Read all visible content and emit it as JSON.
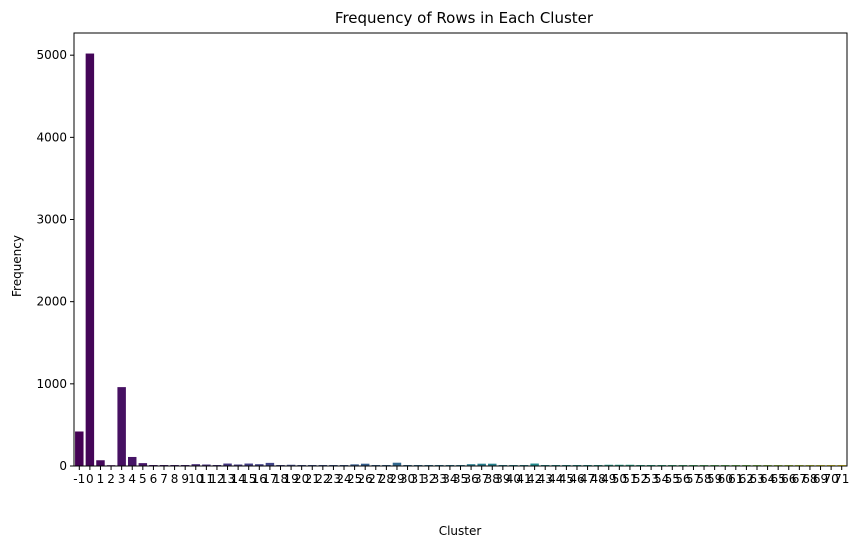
{
  "chart_data": {
    "type": "bar",
    "title": "Frequency of Rows in Each Cluster",
    "xlabel": "Cluster",
    "ylabel": "Frequency",
    "ylim": [
      0,
      5270
    ],
    "yticks": [
      0,
      1000,
      2000,
      3000,
      4000,
      5000
    ],
    "grid": false,
    "colormap": "viridis",
    "categories": [
      "-1",
      "0",
      "1",
      "2",
      "3",
      "4",
      "5",
      "6",
      "7",
      "8",
      "9",
      "10",
      "11",
      "12",
      "13",
      "14",
      "15",
      "16",
      "17",
      "18",
      "19",
      "20",
      "21",
      "22",
      "23",
      "24",
      "25",
      "26",
      "27",
      "28",
      "29",
      "30",
      "31",
      "32",
      "33",
      "34",
      "35",
      "36",
      "37",
      "38",
      "39",
      "40",
      "41",
      "42",
      "43",
      "44",
      "45",
      "46",
      "47",
      "48",
      "49",
      "50",
      "51",
      "52",
      "53",
      "54",
      "55",
      "56",
      "57",
      "58",
      "59",
      "60",
      "61",
      "62",
      "63",
      "64",
      "65",
      "66",
      "67",
      "68",
      "69",
      "70",
      "71"
    ],
    "values": [
      420,
      5020,
      70,
      10,
      960,
      110,
      35,
      12,
      12,
      12,
      12,
      22,
      18,
      12,
      30,
      18,
      30,
      22,
      38,
      12,
      15,
      12,
      12,
      12,
      12,
      12,
      20,
      28,
      12,
      12,
      40,
      12,
      12,
      12,
      12,
      12,
      12,
      22,
      28,
      28,
      12,
      12,
      12,
      30,
      12,
      12,
      12,
      12,
      12,
      12,
      15,
      15,
      15,
      12,
      12,
      12,
      12,
      12,
      12,
      12,
      12,
      12,
      12,
      12,
      12,
      12,
      12,
      12,
      12,
      12,
      12,
      12,
      12
    ]
  }
}
